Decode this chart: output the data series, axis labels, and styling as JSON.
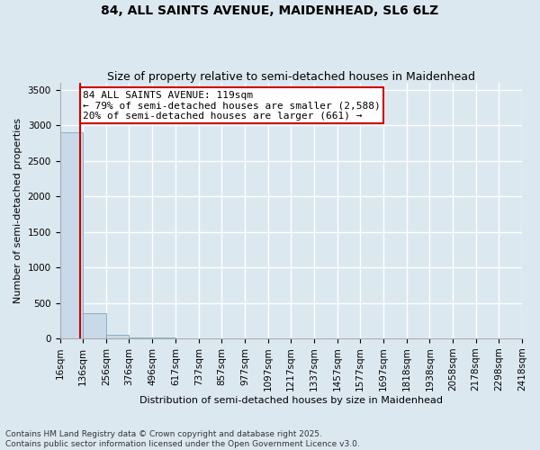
{
  "title": "84, ALL SAINTS AVENUE, MAIDENHEAD, SL6 6LZ",
  "subtitle": "Size of property relative to semi-detached houses in Maidenhead",
  "xlabel": "Distribution of semi-detached houses by size in Maidenhead",
  "ylabel": "Number of semi-detached properties",
  "bar_edges": [
    16,
    136,
    256,
    376,
    496,
    617,
    737,
    857,
    977,
    1097,
    1217,
    1337,
    1457,
    1577,
    1697,
    1818,
    1938,
    2058,
    2178,
    2298,
    2418
  ],
  "bar_heights": [
    2900,
    350,
    50,
    15,
    8,
    5,
    3,
    2,
    2,
    1,
    1,
    1,
    1,
    1,
    1,
    1,
    0,
    0,
    0,
    0
  ],
  "bar_color": "#c8d9e8",
  "bar_edge_color": "#7aaabb",
  "property_line_x": 119,
  "property_line_color": "#cc0000",
  "annotation_text": "84 ALL SAINTS AVENUE: 119sqm\n← 79% of semi-detached houses are smaller (2,588)\n20% of semi-detached houses are larger (661) →",
  "ylim": [
    0,
    3600
  ],
  "yticks": [
    0,
    500,
    1000,
    1500,
    2000,
    2500,
    3000,
    3500
  ],
  "footer": "Contains HM Land Registry data © Crown copyright and database right 2025.\nContains public sector information licensed under the Open Government Licence v3.0.",
  "background_color": "#dce8f0",
  "plot_background_color": "#dce8f0",
  "grid_color": "#ffffff",
  "title_fontsize": 10,
  "subtitle_fontsize": 9,
  "axis_label_fontsize": 8,
  "tick_fontsize": 7.5,
  "annotation_fontsize": 8,
  "footer_fontsize": 6.5
}
